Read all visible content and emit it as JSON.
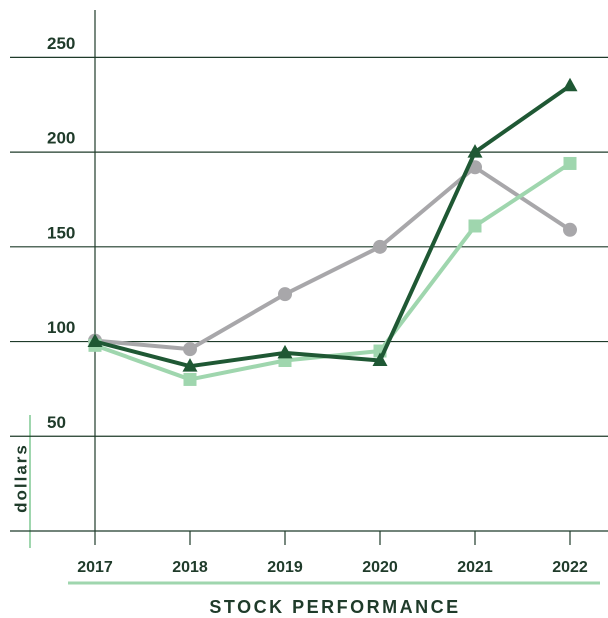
{
  "chart_data": {
    "type": "line",
    "title": "STOCK PERFORMANCE",
    "y_label": "dollars",
    "categories": [
      "2017",
      "2018",
      "2019",
      "2020",
      "2021",
      "2022"
    ],
    "series": [
      {
        "color": "#a8a7aa",
        "marker": "circle",
        "values": [
          100.5,
          96,
          125,
          150,
          192,
          159
        ]
      },
      {
        "color": "#9fd6ae",
        "marker": "square",
        "values": [
          98,
          80,
          90,
          95,
          161,
          194
        ]
      },
      {
        "color": "#1f5834",
        "marker": "triangle",
        "values": [
          100,
          87,
          94,
          90,
          200,
          235
        ]
      }
    ],
    "ylim": [
      0,
      275
    ],
    "yticks": [
      50,
      100,
      150,
      200,
      250
    ],
    "grid": true
  }
}
